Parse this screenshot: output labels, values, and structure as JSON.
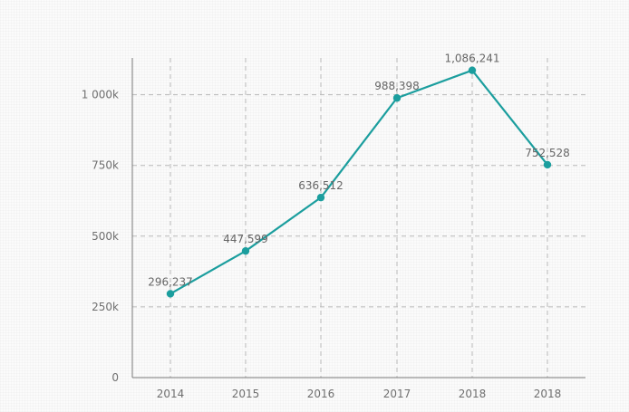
{
  "chart_data": {
    "type": "line",
    "title": "",
    "xlabel": "",
    "ylabel": "",
    "categories": [
      "2014",
      "2015",
      "2016",
      "2017",
      "2018",
      "2018"
    ],
    "series": [
      {
        "values": [
          296237,
          447599,
          636512,
          988398,
          1086241,
          752528
        ],
        "data_labels": [
          "296,237",
          "447,599",
          "636,512",
          "988,398",
          "1,086,241",
          "752,528"
        ]
      }
    ],
    "y_ticks": [
      {
        "value": 0,
        "label": "0"
      },
      {
        "value": 250000,
        "label": "250k"
      },
      {
        "value": 500000,
        "label": "500k"
      },
      {
        "value": 750000,
        "label": "750k"
      },
      {
        "value": 1000000,
        "label": "1 000k"
      }
    ],
    "ylim": [
      0,
      1130000
    ],
    "grid": true,
    "legend": "none",
    "colors": {
      "line": "#1b9e9e",
      "marker": "#1b9e9e"
    }
  }
}
